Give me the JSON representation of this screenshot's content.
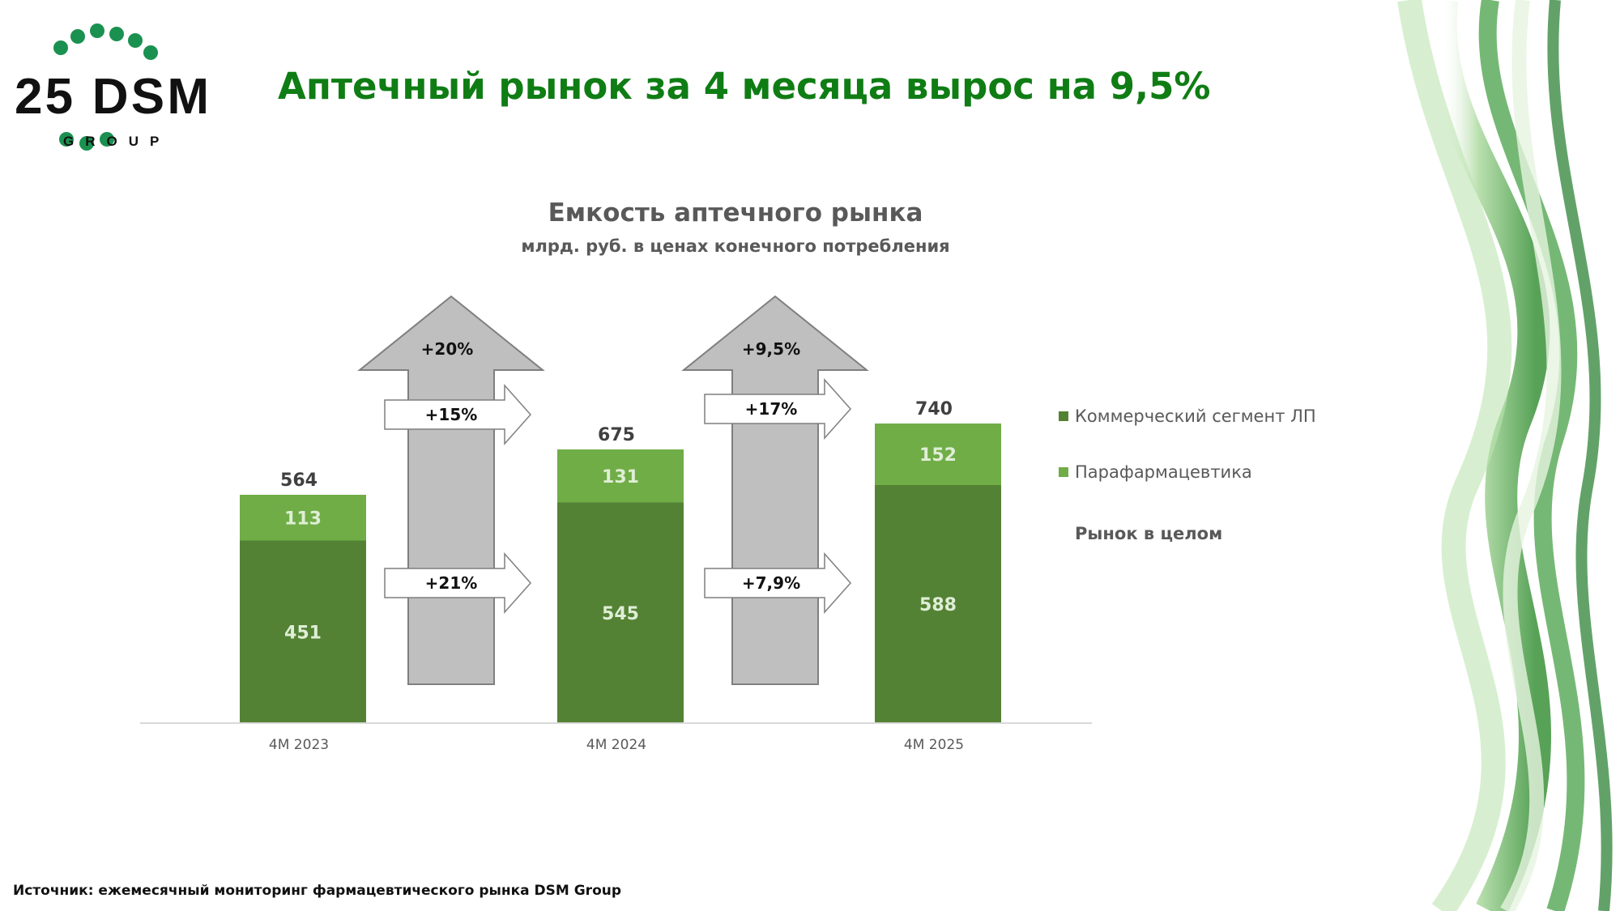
{
  "page": {
    "headline": "Аптечный рынок за 4 месяца вырос на 9,5%",
    "source": "Источник: ежемесячный мониторинг фармацевтического рынка DSM Group"
  },
  "logo": {
    "text": "25 DSM",
    "subtext": "GROUP",
    "color": "#1a9150"
  },
  "colors": {
    "headline": "#0f7d14",
    "commercial": "#548235",
    "parapharm": "#70ad47",
    "arrow_fill": "#bfbfbf",
    "arrow_stroke": "#7f7f7f",
    "title_text": "#595959"
  },
  "chart_data": {
    "type": "bar",
    "stacked": true,
    "title": "Емкость аптечного рынка",
    "subtitle": "млрд. руб. в ценах конечного потребления",
    "categories": [
      "4M 2023",
      "4M 2024",
      "4M 2025"
    ],
    "series": [
      {
        "name": "Коммерческий сегмент ЛП",
        "values": [
          451,
          545,
          588
        ],
        "color": "#548235"
      },
      {
        "name": "Парафармацевтика",
        "values": [
          113,
          131,
          152
        ],
        "color": "#70ad47"
      }
    ],
    "totals": {
      "name": "Рынок в целом",
      "values": [
        564,
        675,
        740
      ]
    },
    "growth": [
      {
        "from": 0,
        "to": 1,
        "total": "+20%",
        "parapharm": "+15%",
        "commercial": "+21%"
      },
      {
        "from": 1,
        "to": 2,
        "total": "+9,5%",
        "parapharm": "+17%",
        "commercial": "+7,9%"
      }
    ],
    "ylim": [
      0,
      800
    ],
    "legend_position": "right",
    "grid": false
  }
}
